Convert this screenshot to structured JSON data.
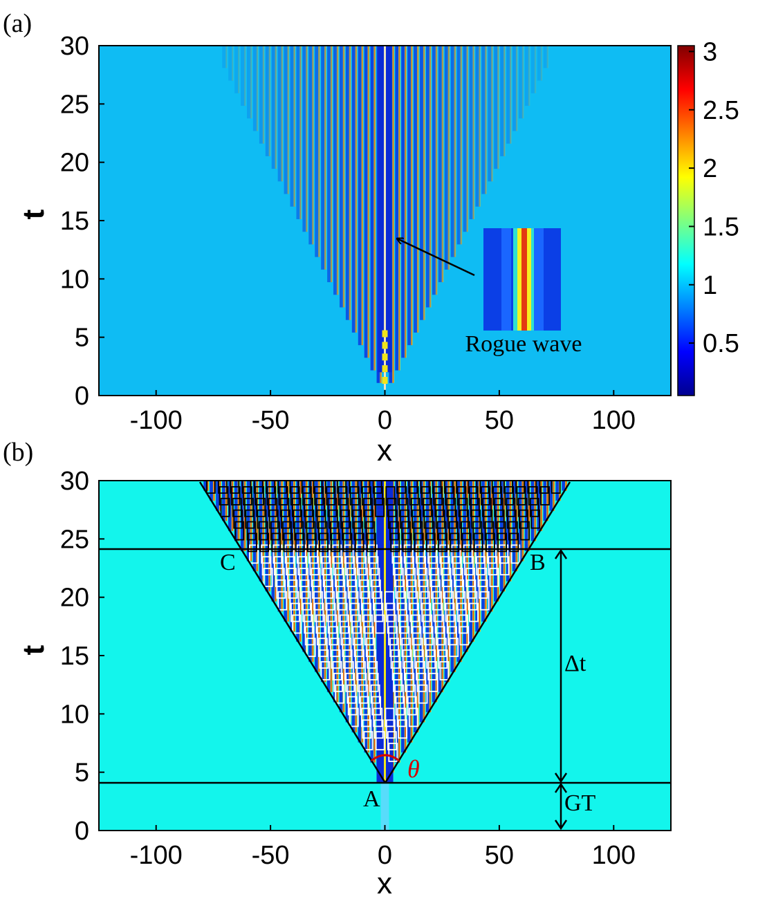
{
  "chart_data": [
    {
      "type": "heatmap",
      "panel_label": "(a)",
      "xlabel": "x",
      "ylabel": "t",
      "xlim": [
        -125,
        125
      ],
      "ylim": [
        0,
        30
      ],
      "xticks": [
        -100,
        -50,
        0,
        50,
        100
      ],
      "xtick_labels": [
        "-100",
        "-50",
        "0",
        "50",
        "100"
      ],
      "yticks": [
        0,
        5,
        10,
        15,
        20,
        25,
        30
      ],
      "ytick_labels": [
        "0",
        "5",
        "10",
        "15",
        "20",
        "25",
        "30"
      ],
      "colorbar": {
        "colormap": "jet",
        "range": [
          0.05,
          3.05
        ],
        "ticks": [
          0.5,
          1,
          1.5,
          2,
          2.5,
          3
        ],
        "tick_labels": [
          "0.5",
          "1",
          "1.5",
          "2",
          "2.5",
          "3"
        ]
      },
      "background_level": 1,
      "wedge": {
        "apex": [
          0,
          0
        ],
        "edges_at_t30": [
          -75,
          75
        ]
      },
      "stripes": {
        "count_each_side": 26,
        "spacing": 2.7
      },
      "annotation": {
        "text": "Rogue wave",
        "arrow_to": [
          5,
          13.5
        ]
      }
    },
    {
      "type": "heatmap",
      "panel_label": "(b)",
      "xlabel": "x",
      "ylabel": "t",
      "xlim": [
        -125,
        125
      ],
      "ylim": [
        0,
        30
      ],
      "xticks": [
        -100,
        -50,
        0,
        50,
        100
      ],
      "xtick_labels": [
        "-100",
        "-50",
        "0",
        "50",
        "100"
      ],
      "yticks": [
        0,
        5,
        10,
        15,
        20,
        25,
        30
      ],
      "ytick_labels": [
        "0",
        "5",
        "10",
        "15",
        "20",
        "25",
        "30"
      ],
      "colormap": "jet",
      "background_level": 1.05,
      "wedge_lines": [
        {
          "from": [
            0,
            4.1
          ],
          "to": [
            -81,
            30
          ]
        },
        {
          "from": [
            0,
            4.1
          ],
          "to": [
            81,
            30
          ]
        }
      ],
      "horizontal_lines": [
        24.2,
        4.1
      ],
      "points": [
        {
          "label": "A",
          "x": -5,
          "t": 2.5
        },
        {
          "label": "B",
          "x": 67,
          "t": 23.2
        },
        {
          "label": "C",
          "x": -64,
          "t": 23.2
        }
      ],
      "theta_label": "θ",
      "interval_labels": [
        {
          "label": "Δt",
          "t_from": 4.1,
          "t_to": 24.2
        },
        {
          "label": "GT",
          "t_from": 0,
          "t_to": 4.1
        }
      ],
      "colors": {
        "white_boxes": "#ffffff",
        "black_boxes": "#000000",
        "theta": "#d40000"
      }
    }
  ]
}
